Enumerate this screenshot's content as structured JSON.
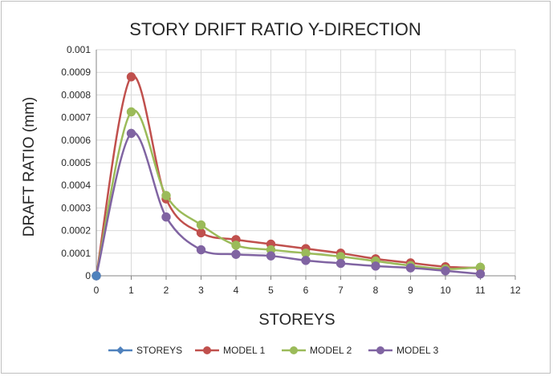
{
  "chart_data": {
    "type": "line",
    "title": "STORY DRIFT RATIO Y-DIRECTION",
    "xlabel": "STOREYS",
    "ylabel": "DRAFT RATIO (mm)",
    "xlim": [
      0,
      12
    ],
    "ylim": [
      0,
      0.001
    ],
    "x_ticks": [
      "0",
      "1",
      "2",
      "3",
      "4",
      "5",
      "6",
      "7",
      "8",
      "9",
      "10",
      "11",
      "12"
    ],
    "y_ticks": [
      "0",
      "0.0001",
      "0.0002",
      "0.0003",
      "0.0004",
      "0.0005",
      "0.0006",
      "0.0007",
      "0.0008",
      "0.0009",
      "0.001"
    ],
    "grid": true,
    "smooth": true,
    "legend_position": "bottom",
    "x": [
      0,
      1,
      2,
      3,
      4,
      5,
      6,
      7,
      8,
      9,
      10,
      11
    ],
    "series": [
      {
        "name": "STOREYS",
        "color": "#4f81bd",
        "values": [
          0,
          null,
          null,
          null,
          null,
          null,
          null,
          null,
          null,
          null,
          null,
          null
        ]
      },
      {
        "name": "MODEL 1",
        "color": "#c0504d",
        "values": [
          0,
          0.00088,
          0.00034,
          0.00019,
          0.00016,
          0.00014,
          0.00012,
          0.0001,
          7.5e-05,
          5.7e-05,
          4e-05,
          3.5e-05
        ]
      },
      {
        "name": "MODEL 2",
        "color": "#9bbb59",
        "values": [
          0,
          0.000725,
          0.000355,
          0.000225,
          0.000135,
          0.000115,
          0.0001,
          8.5e-05,
          6.5e-05,
          4.5e-05,
          3e-05,
          3.8e-05
        ]
      },
      {
        "name": "MODEL 3",
        "color": "#8064a2",
        "values": [
          0,
          0.00063,
          0.00026,
          0.000115,
          9.5e-05,
          8.8e-05,
          6.8e-05,
          5.5e-05,
          4.3e-05,
          3.5e-05,
          2.2e-05,
          8e-06
        ]
      }
    ]
  }
}
